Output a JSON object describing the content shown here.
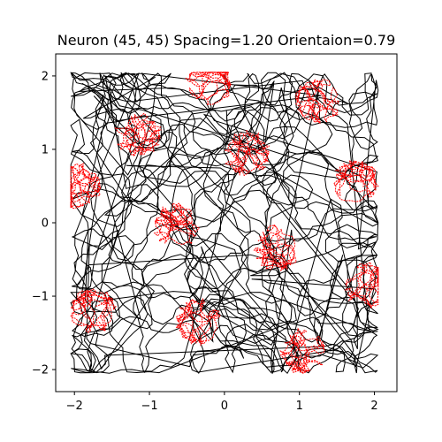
{
  "chart_data": {
    "type": "line",
    "title": "Neuron (45, 45) Spacing=1.20 Orientaion=0.79",
    "xlabel": "",
    "ylabel": "",
    "xlim": [
      -2.25,
      2.3
    ],
    "ylim": [
      -2.3,
      2.3
    ],
    "x_ticks": [
      -2,
      -1,
      0,
      1,
      2
    ],
    "x_tick_labels": [
      "−2",
      "−1",
      "0",
      "1",
      "2"
    ],
    "y_ticks": [
      -2,
      -1,
      0,
      1,
      2
    ],
    "y_tick_labels": [
      "−2",
      "−1",
      "0",
      "1",
      "2"
    ],
    "grid": false,
    "legend": "none",
    "series": [
      {
        "color": "#000000",
        "description": "random-walk trajectory through the square arena",
        "region": [
          -2.05,
          2.05
        ]
      },
      {
        "color": "#ff0000",
        "description": "trajectory segments where the neuron fires",
        "firing_field_centers": [
          [
            -1.15,
            1.2
          ],
          [
            -0.2,
            1.9
          ],
          [
            1.25,
            1.65
          ],
          [
            0.3,
            0.95
          ],
          [
            1.75,
            0.55
          ],
          [
            -1.95,
            0.5
          ],
          [
            -0.65,
            -0.05
          ],
          [
            0.7,
            -0.35
          ],
          [
            1.9,
            -0.85
          ],
          [
            -1.75,
            -1.2
          ],
          [
            -0.35,
            -1.35
          ],
          [
            1.05,
            -1.75
          ]
        ]
      }
    ]
  }
}
